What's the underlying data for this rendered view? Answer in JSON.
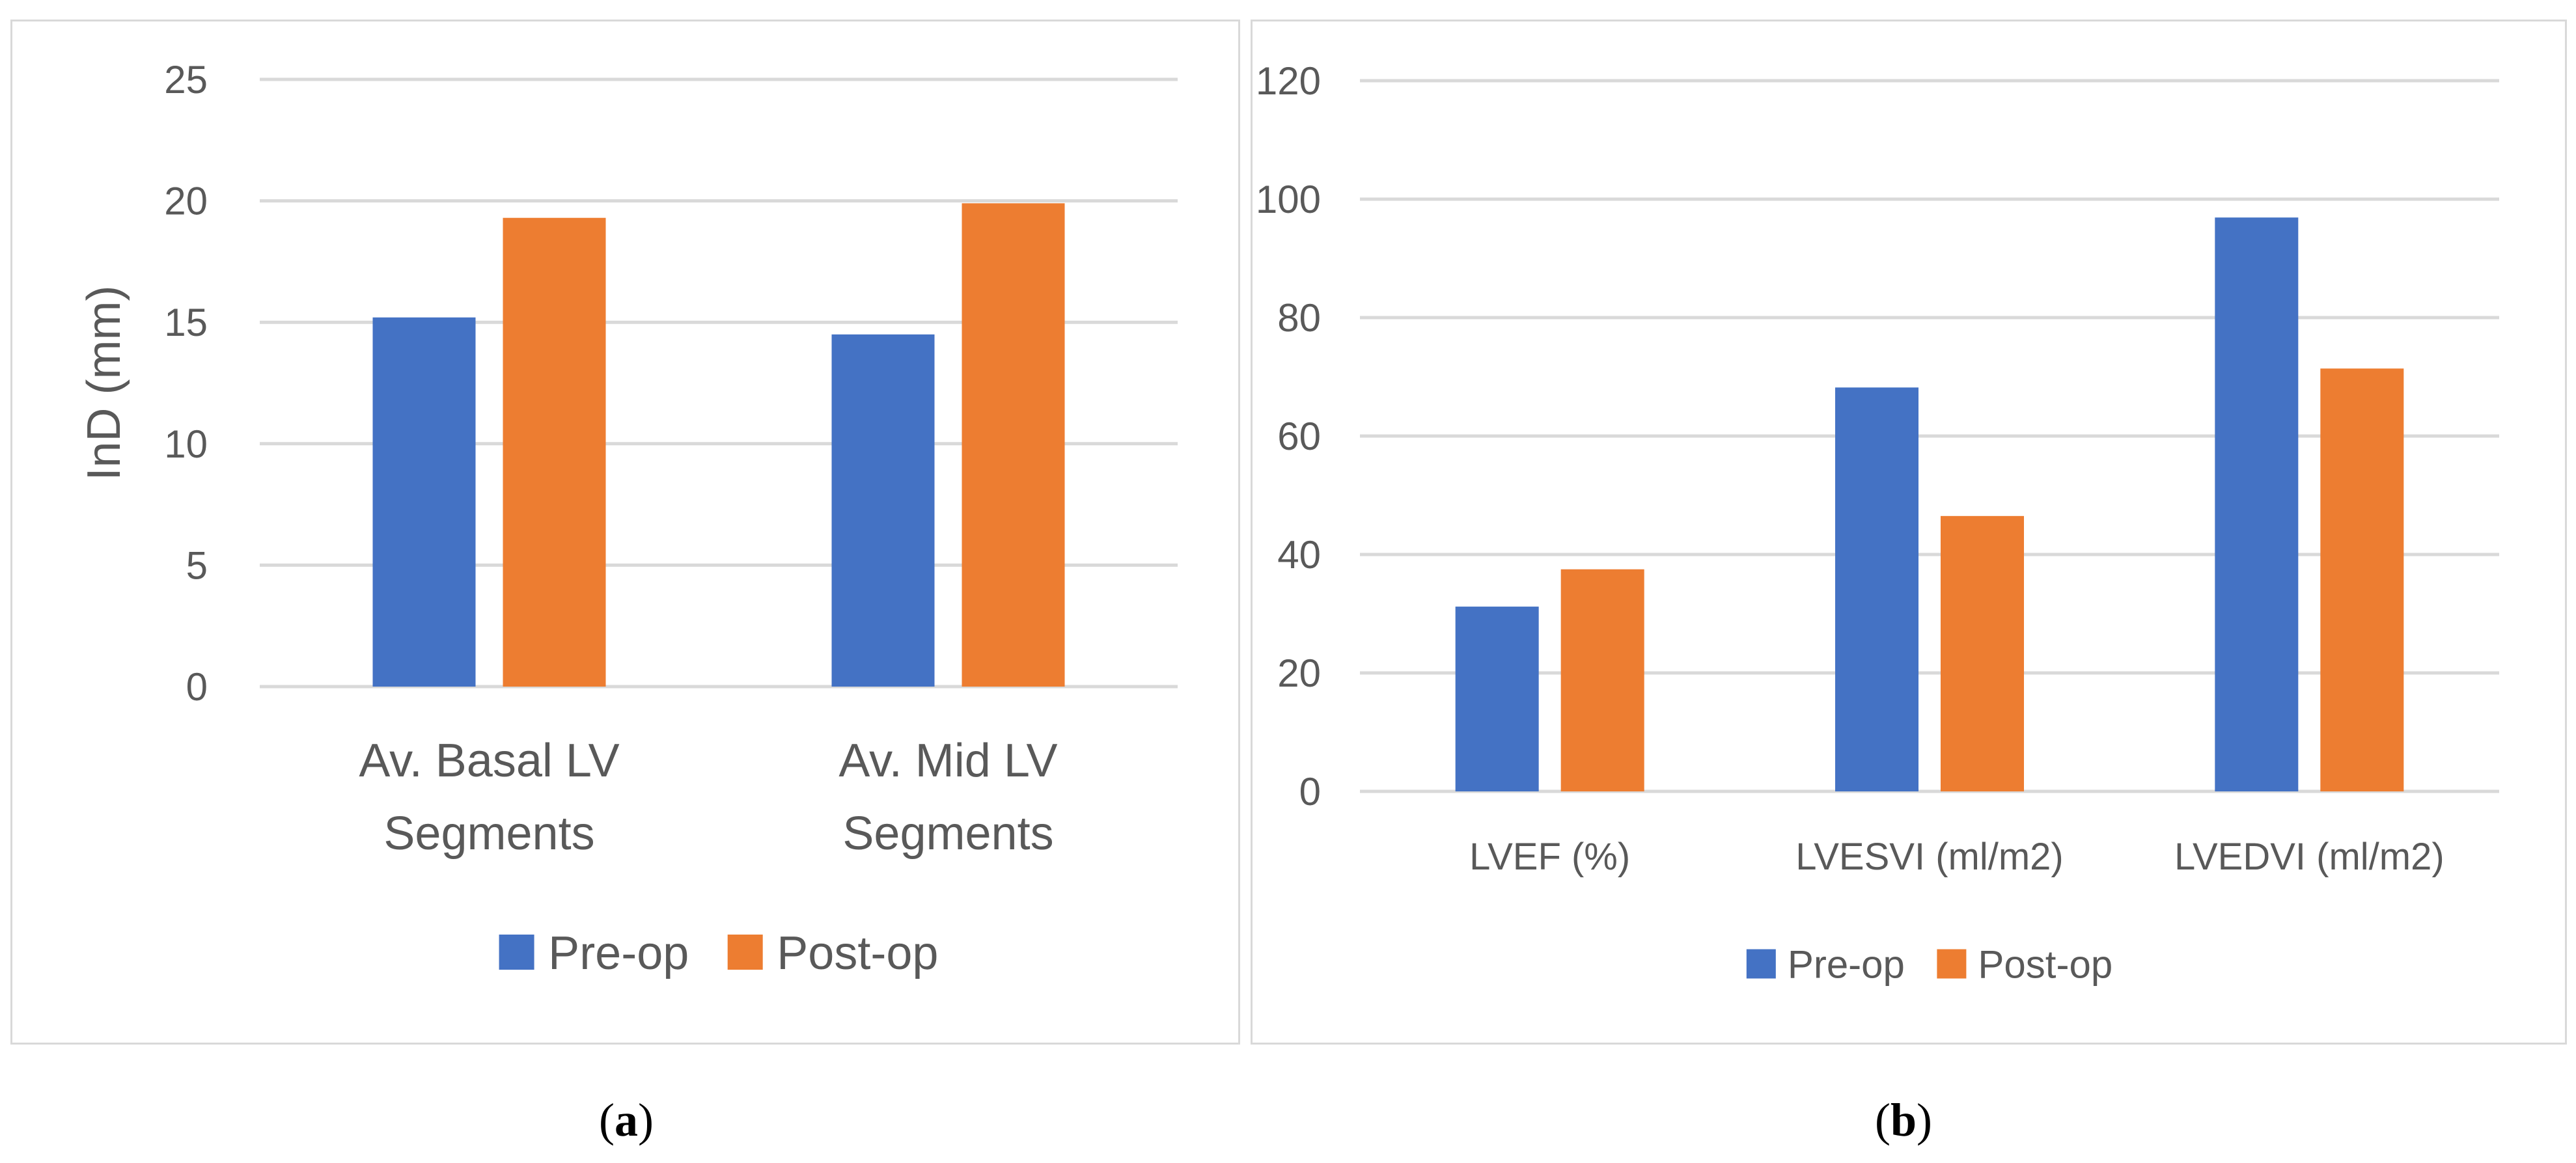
{
  "colors": {
    "pre": "#4472C4",
    "post": "#ED7D31",
    "grid": "#D9D9D9",
    "text": "#595959"
  },
  "captions": {
    "a_open": "(",
    "a_letter": "a",
    "a_close": ")",
    "b_open": "(",
    "b_letter": "b",
    "b_close": ")"
  },
  "chart_data": [
    {
      "type": "bar",
      "title": "",
      "xlabel": "",
      "ylabel": "InD (mm)",
      "ylim": [
        0,
        25
      ],
      "yticks": [
        0,
        5,
        10,
        15,
        20,
        25
      ],
      "categories": [
        [
          "Av. Basal LV",
          "Segments"
        ],
        [
          "Av. Mid LV",
          "Segments"
        ]
      ],
      "series": [
        {
          "name": "Pre-op",
          "values": [
            15.2,
            14.5
          ]
        },
        {
          "name": "Post-op",
          "values": [
            19.3,
            19.9
          ]
        }
      ],
      "legend": "bottom",
      "grid": true
    },
    {
      "type": "bar",
      "title": "",
      "xlabel": "",
      "ylabel": "",
      "ylim": [
        0,
        120
      ],
      "yticks": [
        0,
        20,
        40,
        60,
        80,
        100,
        120
      ],
      "categories": [
        [
          "LVEF (%)"
        ],
        [
          "LVESVI (ml/m2)"
        ],
        [
          "LVEDVI (ml/m2)"
        ]
      ],
      "series": [
        {
          "name": "Pre-op",
          "values": [
            31.2,
            68.2,
            96.9
          ]
        },
        {
          "name": "Post-op",
          "values": [
            37.5,
            46.5,
            71.4
          ]
        }
      ],
      "legend": "bottom",
      "grid": true
    }
  ]
}
